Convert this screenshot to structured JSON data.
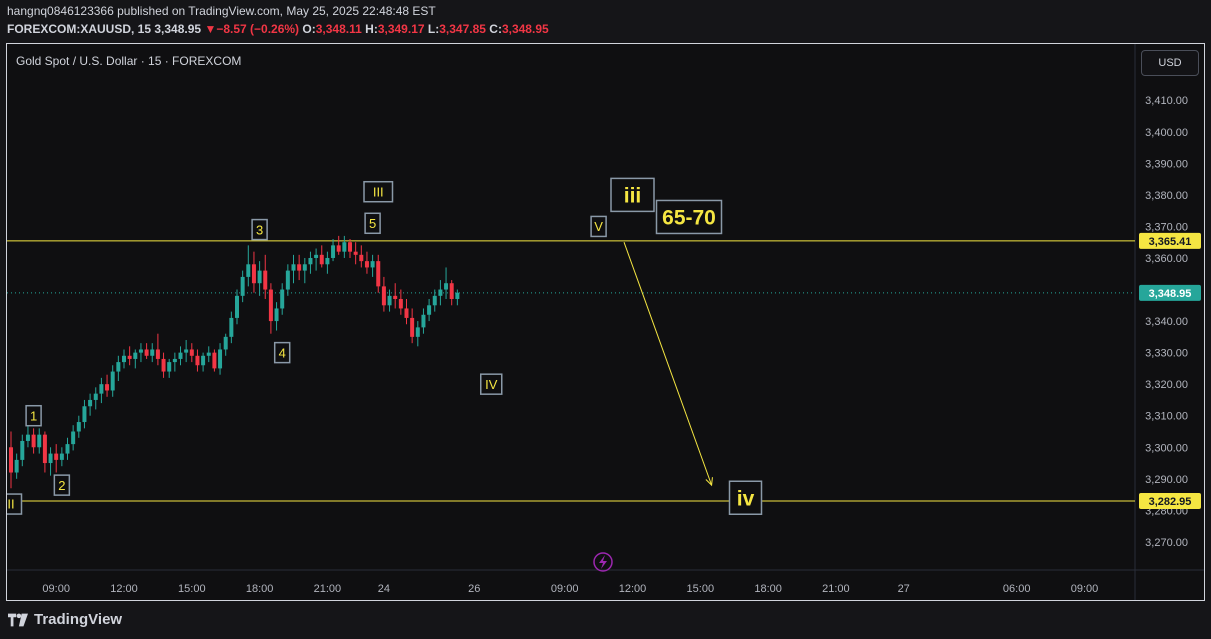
{
  "header": {
    "line1": "hangnq0846123366 published on TradingView.com, May 25, 2025 22:48:48 EST",
    "symbol": "FOREXCOM:XAUUSD, 15",
    "last": "3,348.95",
    "arrow": "▼",
    "change": "−8.57 (−0.26%)",
    "o_label": "O:",
    "o_val": "3,348.11",
    "h_label": "H:",
    "h_val": "3,349.17",
    "l_label": "L:",
    "l_val": "3,347.85",
    "c_label": "C:",
    "c_val": "3,348.95"
  },
  "instrument": "Gold Spot / U.S. Dollar · 15 · FOREXCOM",
  "currency_button": "USD",
  "footer": {
    "brand": "TradingView"
  },
  "colors": {
    "up": "#26a69a",
    "down": "#f23645",
    "level": "#f5e642",
    "last_badge": "#26a69a",
    "label_border": "#8a99a8"
  },
  "chart_data": {
    "type": "candlestick",
    "ylim": [
      3263,
      3418
    ],
    "y_ticks": [
      3270,
      3280,
      3290,
      3300,
      3310,
      3320,
      3330,
      3340,
      3350,
      3360,
      3370,
      3380,
      3390,
      3400,
      3410
    ],
    "y_tick_labels": [
      "3,270.00",
      "3,280.00",
      "3,290.00",
      "3,300.00",
      "3,310.00",
      "3,320.00",
      "3,330.00",
      "3,340.00",
      "3,350.00",
      "3,360.00",
      "3,370.00",
      "3,380.00",
      "3,390.00",
      "3,400.00",
      "3,410.00"
    ],
    "x_ticks": [
      {
        "label": "09:00",
        "bar": 8
      },
      {
        "label": "12:00",
        "bar": 20
      },
      {
        "label": "15:00",
        "bar": 32
      },
      {
        "label": "18:00",
        "bar": 44
      },
      {
        "label": "21:00",
        "bar": 56
      },
      {
        "label": "24",
        "bar": 66
      },
      {
        "label": "26",
        "bar": 82
      },
      {
        "label": "09:00",
        "bar": 98
      },
      {
        "label": "12:00",
        "bar": 110
      },
      {
        "label": "15:00",
        "bar": 122
      },
      {
        "label": "18:00",
        "bar": 134
      },
      {
        "label": "21:00",
        "bar": 146
      },
      {
        "label": "27",
        "bar": 158
      },
      {
        "label": "06:00",
        "bar": 178
      },
      {
        "label": "09:00",
        "bar": 190
      }
    ],
    "candles": [
      [
        3300,
        3305,
        3287,
        3292
      ],
      [
        3292,
        3298,
        3290,
        3296
      ],
      [
        3296,
        3304,
        3294,
        3302
      ],
      [
        3302,
        3308,
        3300,
        3304
      ],
      [
        3304,
        3306,
        3298,
        3300
      ],
      [
        3300,
        3306,
        3298,
        3304
      ],
      [
        3304,
        3305,
        3292,
        3295
      ],
      [
        3295,
        3300,
        3291,
        3298
      ],
      [
        3298,
        3301,
        3292,
        3296
      ],
      [
        3296,
        3300,
        3294,
        3298
      ],
      [
        3298,
        3303,
        3296,
        3301
      ],
      [
        3301,
        3307,
        3299,
        3305
      ],
      [
        3305,
        3310,
        3303,
        3308
      ],
      [
        3308,
        3315,
        3306,
        3313
      ],
      [
        3313,
        3317,
        3310,
        3315
      ],
      [
        3315,
        3319,
        3312,
        3317
      ],
      [
        3317,
        3322,
        3314,
        3320
      ],
      [
        3320,
        3323,
        3316,
        3318
      ],
      [
        3318,
        3326,
        3316,
        3324
      ],
      [
        3324,
        3329,
        3321,
        3327
      ],
      [
        3327,
        3331,
        3325,
        3329
      ],
      [
        3329,
        3332,
        3326,
        3328
      ],
      [
        3328,
        3331,
        3325,
        3330
      ],
      [
        3330,
        3333,
        3327,
        3331
      ],
      [
        3331,
        3333,
        3328,
        3329
      ],
      [
        3329,
        3333,
        3327,
        3331
      ],
      [
        3331,
        3336,
        3326,
        3328
      ],
      [
        3328,
        3330,
        3322,
        3324
      ],
      [
        3324,
        3328,
        3322,
        3327
      ],
      [
        3327,
        3330,
        3324,
        3328
      ],
      [
        3328,
        3332,
        3326,
        3330
      ],
      [
        3330,
        3334,
        3327,
        3331
      ],
      [
        3331,
        3333,
        3327,
        3329
      ],
      [
        3329,
        3331,
        3324,
        3326
      ],
      [
        3326,
        3330,
        3324,
        3329
      ],
      [
        3329,
        3332,
        3327,
        3330
      ],
      [
        3330,
        3331,
        3324,
        3325
      ],
      [
        3325,
        3333,
        3323,
        3331
      ],
      [
        3331,
        3336,
        3329,
        3335
      ],
      [
        3335,
        3343,
        3333,
        3341
      ],
      [
        3341,
        3350,
        3339,
        3348
      ],
      [
        3348,
        3356,
        3346,
        3354
      ],
      [
        3354,
        3364,
        3351,
        3358
      ],
      [
        3358,
        3362,
        3349,
        3352
      ],
      [
        3352,
        3359,
        3348,
        3356
      ],
      [
        3356,
        3361,
        3347,
        3350
      ],
      [
        3350,
        3352,
        3336,
        3340
      ],
      [
        3340,
        3346,
        3337,
        3344
      ],
      [
        3344,
        3352,
        3342,
        3350
      ],
      [
        3350,
        3358,
        3348,
        3356
      ],
      [
        3356,
        3361,
        3352,
        3358
      ],
      [
        3358,
        3361,
        3353,
        3356
      ],
      [
        3356,
        3360,
        3352,
        3358
      ],
      [
        3358,
        3362,
        3355,
        3360
      ],
      [
        3360,
        3363,
        3356,
        3361
      ],
      [
        3361,
        3364,
        3357,
        3358
      ],
      [
        3358,
        3362,
        3355,
        3360
      ],
      [
        3360,
        3366,
        3359,
        3364
      ],
      [
        3364,
        3367,
        3361,
        3362
      ],
      [
        3362,
        3367,
        3360,
        3365
      ],
      [
        3365,
        3366,
        3360,
        3362
      ],
      [
        3362,
        3365,
        3358,
        3361
      ],
      [
        3361,
        3364,
        3357,
        3359
      ],
      [
        3359,
        3362,
        3355,
        3357
      ],
      [
        3357,
        3361,
        3354,
        3359
      ],
      [
        3359,
        3361,
        3349,
        3351
      ],
      [
        3351,
        3354,
        3343,
        3345
      ],
      [
        3345,
        3350,
        3343,
        3348
      ],
      [
        3348,
        3352,
        3344,
        3347
      ],
      [
        3347,
        3350,
        3342,
        3344
      ],
      [
        3344,
        3347,
        3339,
        3341
      ],
      [
        3341,
        3344,
        3333,
        3335
      ],
      [
        3335,
        3340,
        3332,
        3338
      ],
      [
        3338,
        3344,
        3336,
        3342
      ],
      [
        3342,
        3347,
        3340,
        3345
      ],
      [
        3345,
        3350,
        3343,
        3348
      ],
      [
        3348,
        3353,
        3345,
        3350
      ],
      [
        3350,
        3357,
        3347,
        3352
      ],
      [
        3352,
        3353,
        3345,
        3347
      ],
      [
        3347,
        3350,
        3345,
        3349
      ]
    ],
    "last_price": 3348.95,
    "last_price_label": "3,348.95",
    "levels": [
      {
        "value": 3365.41,
        "label": "3,365.41"
      },
      {
        "value": 3282.95,
        "label": "3,282.95"
      }
    ],
    "wave_labels": [
      {
        "text": "1",
        "bar": 4,
        "price": 3310,
        "size": "small"
      },
      {
        "text": "2",
        "bar": 9,
        "price": 3288,
        "size": "small"
      },
      {
        "text": "II",
        "bar": 0,
        "price": 3282,
        "size": "small"
      },
      {
        "text": "3",
        "bar": 44,
        "price": 3369,
        "size": "small"
      },
      {
        "text": "4",
        "bar": 48,
        "price": 3330,
        "size": "small"
      },
      {
        "text": "III",
        "bar": 65,
        "price": 3381,
        "size": "small"
      },
      {
        "text": "5",
        "bar": 64,
        "price": 3371,
        "size": "small"
      },
      {
        "text": "IV",
        "bar": 85,
        "price": 3320,
        "size": "small"
      },
      {
        "text": "V",
        "bar": 104,
        "price": 3370,
        "size": "small"
      },
      {
        "text": "iii",
        "bar": 110,
        "price": 3380,
        "size": "large"
      },
      {
        "text": "65-70",
        "bar": 120,
        "price": 3373,
        "size": "large"
      },
      {
        "text": "iv",
        "bar": 130,
        "price": 3284,
        "size": "large"
      }
    ],
    "arrow": {
      "from": {
        "bar": 108.5,
        "price": 3365
      },
      "to": {
        "bar": 124,
        "price": 3288
      }
    }
  }
}
